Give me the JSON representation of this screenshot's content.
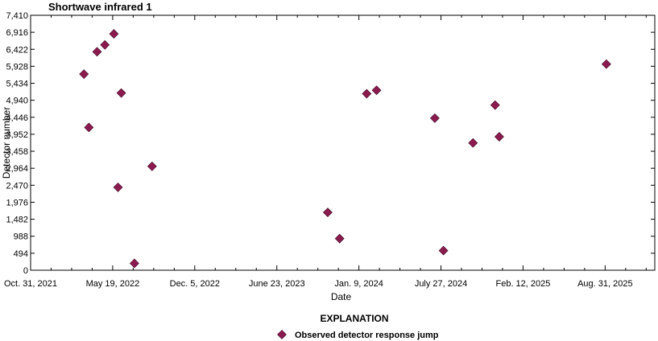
{
  "chart_data": {
    "type": "scatter",
    "title": "Shortwave infrared 1",
    "xlabel": "Date",
    "ylabel": "Detector number",
    "xlim": [
      "2021-10-31",
      "2025-12-30"
    ],
    "ylim": [
      0,
      7410
    ],
    "x_ticks": [
      {
        "date": "2021-10-31",
        "label": "Oct. 31, 2021"
      },
      {
        "date": "2022-05-19",
        "label": "May 19, 2022"
      },
      {
        "date": "2022-12-05",
        "label": "Dec. 5, 2022"
      },
      {
        "date": "2023-06-23",
        "label": "June 23, 2023"
      },
      {
        "date": "2024-01-09",
        "label": "Jan. 9, 2024"
      },
      {
        "date": "2024-07-27",
        "label": "July 27, 2024"
      },
      {
        "date": "2025-02-12",
        "label": "Feb. 12, 2025"
      },
      {
        "date": "2025-08-31",
        "label": "Aug. 31, 2025"
      }
    ],
    "y_ticks": [
      {
        "value": 0,
        "label": "0"
      },
      {
        "value": 494,
        "label": "494"
      },
      {
        "value": 988,
        "label": "988"
      },
      {
        "value": 1482,
        "label": "1,482"
      },
      {
        "value": 1976,
        "label": "1,976"
      },
      {
        "value": 2470,
        "label": "2,470"
      },
      {
        "value": 2964,
        "label": "2,964"
      },
      {
        "value": 3458,
        "label": "3,458"
      },
      {
        "value": 3952,
        "label": "3,952"
      },
      {
        "value": 4446,
        "label": "4,446"
      },
      {
        "value": 4940,
        "label": "4,940"
      },
      {
        "value": 5434,
        "label": "5,434"
      },
      {
        "value": 5928,
        "label": "5,928"
      },
      {
        "value": 6422,
        "label": "6,422"
      },
      {
        "value": 6916,
        "label": "6,916"
      },
      {
        "value": 7410,
        "label": "7,410"
      }
    ],
    "series": [
      {
        "name": "Observed detector response jump",
        "color": "#8b1a4f",
        "marker": "diamond",
        "points": [
          {
            "x": "2022-03-10",
            "y": 5700
          },
          {
            "x": "2022-03-22",
            "y": 4150
          },
          {
            "x": "2022-04-11",
            "y": 6350
          },
          {
            "x": "2022-04-30",
            "y": 6550
          },
          {
            "x": "2022-05-22",
            "y": 6870
          },
          {
            "x": "2022-06-01",
            "y": 2410
          },
          {
            "x": "2022-06-09",
            "y": 5150
          },
          {
            "x": "2022-07-11",
            "y": 200
          },
          {
            "x": "2022-08-23",
            "y": 3020
          },
          {
            "x": "2023-10-25",
            "y": 1680
          },
          {
            "x": "2023-11-23",
            "y": 920
          },
          {
            "x": "2024-01-28",
            "y": 5130
          },
          {
            "x": "2024-02-21",
            "y": 5230
          },
          {
            "x": "2024-07-12",
            "y": 4420
          },
          {
            "x": "2024-08-02",
            "y": 570
          },
          {
            "x": "2024-10-13",
            "y": 3700
          },
          {
            "x": "2024-12-06",
            "y": 4800
          },
          {
            "x": "2024-12-16",
            "y": 3880
          },
          {
            "x": "2025-09-03",
            "y": 5990
          }
        ]
      }
    ],
    "grid": false,
    "legend_title": "EXPLANATION",
    "legend_placement": "bottom-center"
  }
}
